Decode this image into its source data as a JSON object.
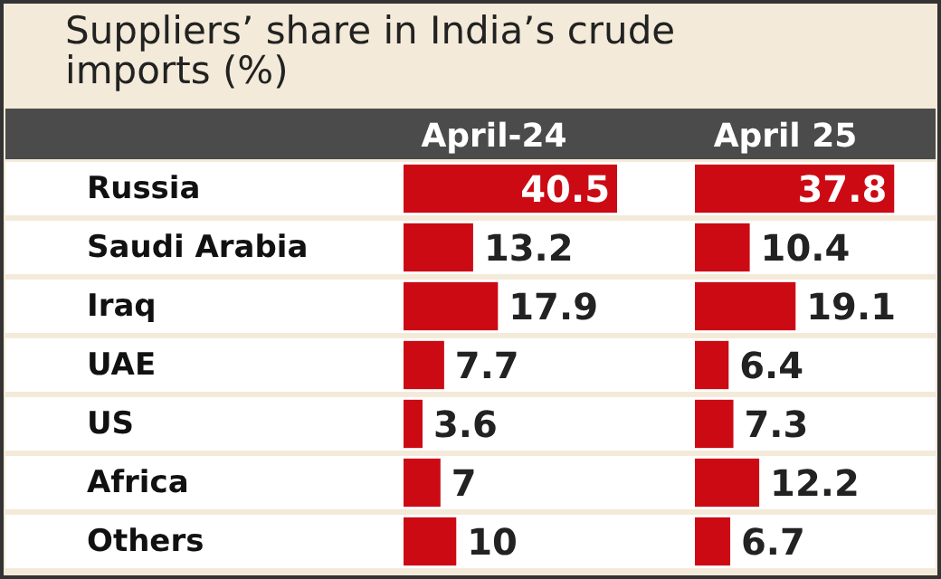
{
  "chart_data": [
    {
      "type": "bar",
      "orientation": "horizontal",
      "title": "Suppliers’ share in India’s crude imports (%)",
      "subtitle": "April-24",
      "categories": [
        "Russia",
        "Saudi Arabia",
        "Iraq",
        "UAE",
        "US",
        "Africa",
        "Others"
      ],
      "values": [
        40.5,
        13.2,
        17.9,
        7.7,
        3.6,
        7,
        10
      ],
      "color": "#cc0a14",
      "data_labels": true,
      "tick_labels": "y"
    },
    {
      "type": "bar",
      "orientation": "horizontal",
      "subtitle": "April 25",
      "categories": [
        null,
        null,
        null,
        null,
        null,
        null,
        null
      ],
      "values": [
        37.8,
        10.4,
        19.1,
        6.4,
        7.3,
        12.2,
        6.7
      ],
      "color": "#cc0a14",
      "data_labels": true,
      "tick_labels": false
    }
  ]
}
